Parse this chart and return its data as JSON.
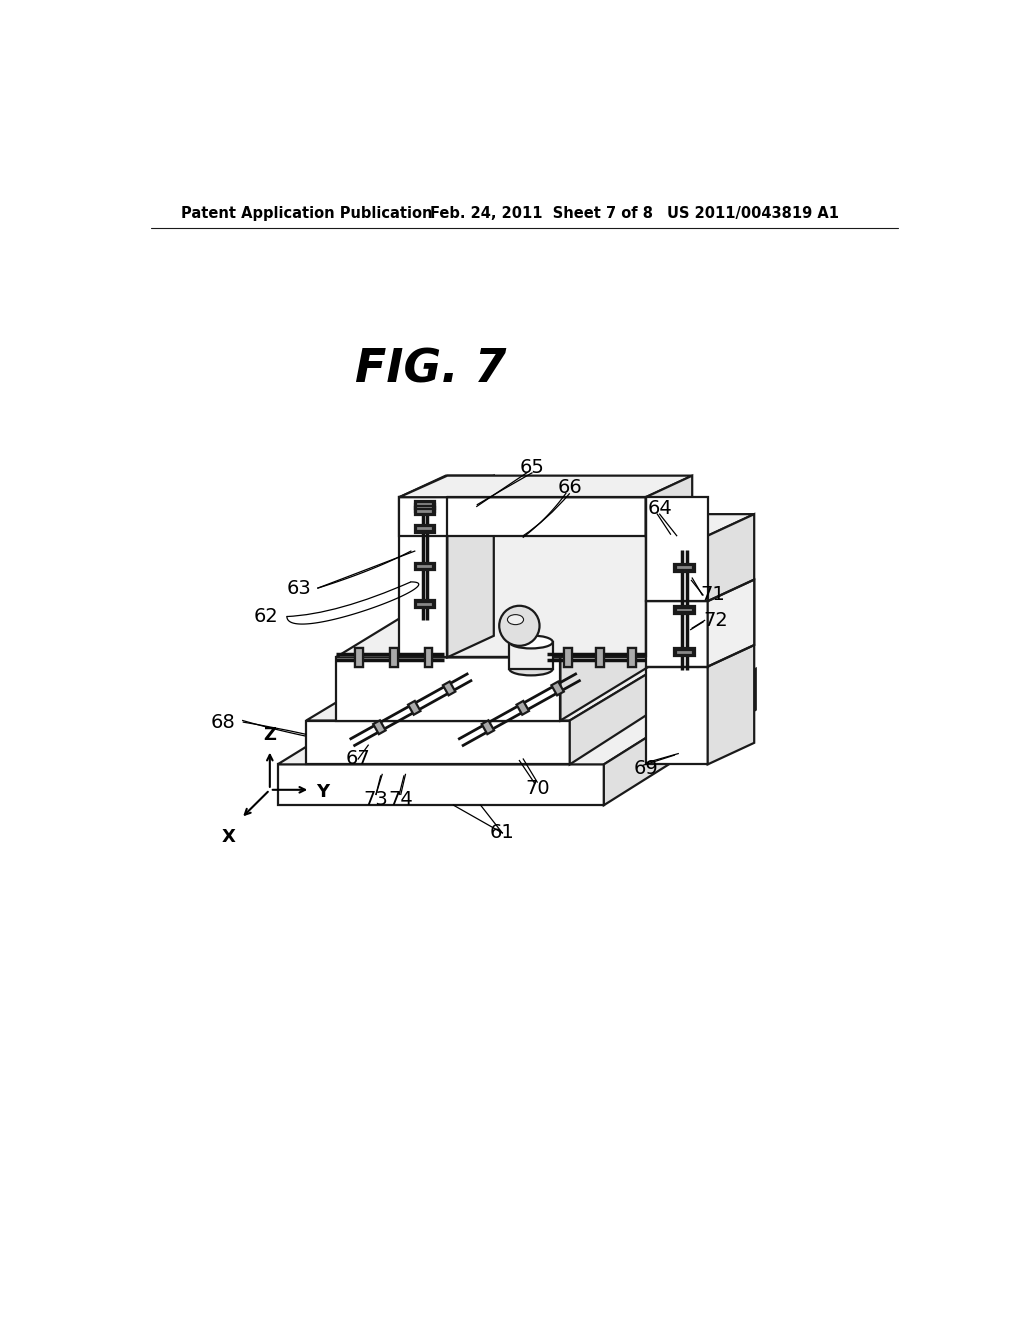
{
  "bg_color": "#ffffff",
  "header_left": "Patent Application Publication",
  "header_mid": "Feb. 24, 2011  Sheet 7 of 8",
  "header_right": "US 2011/0043819 A1",
  "fig_title": "FIG. 7",
  "line_color": "#1a1a1a",
  "fill_white": "#ffffff",
  "fill_light": "#f0f0f0",
  "fill_mid": "#e0e0e0",
  "fill_dark": "#cccccc",
  "fill_darker": "#b8b8b8",
  "rail_color": "#111111",
  "block_fill": "#aaaaaa",
  "block_dark": "#888888",
  "lw_main": 1.6,
  "lw_thin": 1.0,
  "lw_rail": 2.5
}
